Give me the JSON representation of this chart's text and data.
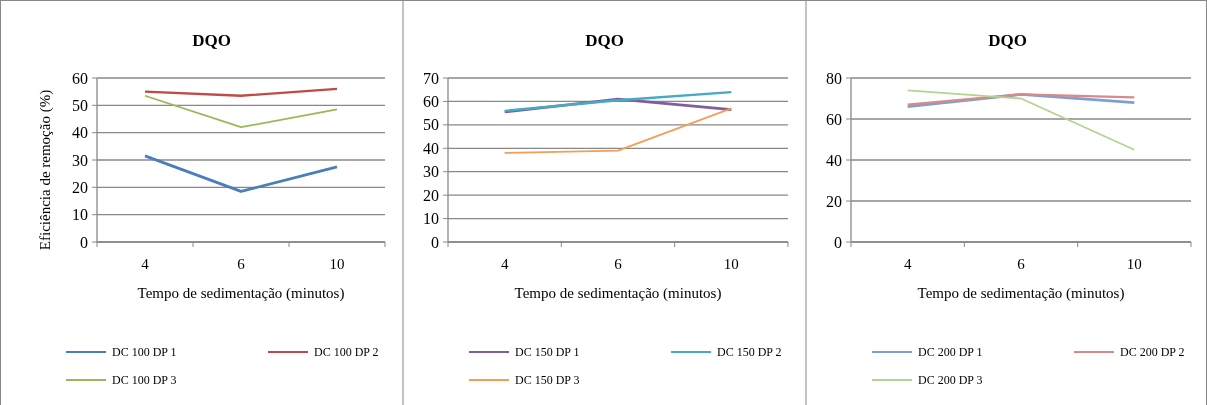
{
  "chart_data": [
    {
      "type": "line",
      "title": "DQO",
      "xlabel": "Tempo de sedimentação (minutos)",
      "ylabel": "Eficiência de remoção (%)",
      "categories": [
        "4",
        "6",
        "10"
      ],
      "ylim": [
        0,
        60
      ],
      "yticks": [
        0,
        10,
        20,
        30,
        40,
        50,
        60
      ],
      "grid": "y",
      "legend": "bottom",
      "series": [
        {
          "name": "DC 100 DP 1",
          "color": "#4a7ebb",
          "values": [
            31.5,
            18.5,
            27.5
          ]
        },
        {
          "name": "DC 100 DP 2",
          "color": "#be4b48",
          "values": [
            55,
            53.5,
            56
          ]
        },
        {
          "name": "DC 100 DP 3",
          "color": "#98b954",
          "values": [
            53.5,
            42,
            48.5
          ]
        }
      ]
    },
    {
      "type": "line",
      "title": "DQO",
      "xlabel": "Tempo de sedimentação (minutos)",
      "categories": [
        "4",
        "6",
        "10"
      ],
      "ylim": [
        0,
        70
      ],
      "yticks": [
        0,
        10,
        20,
        30,
        40,
        50,
        60,
        70
      ],
      "grid": "y",
      "legend": "bottom",
      "series": [
        {
          "name": "DC 150 DP 1",
          "color": "#7d5fa0",
          "values": [
            55.5,
            61,
            56.5
          ]
        },
        {
          "name": "DC 150 DP 2",
          "color": "#46aac5",
          "values": [
            56,
            60.5,
            64
          ]
        },
        {
          "name": "DC 150 DP 3",
          "color": "#f59d56",
          "values": [
            38,
            39,
            57
          ]
        }
      ]
    },
    {
      "type": "line",
      "title": "DQO",
      "xlabel": "Tempo de sedimentação (minutos)",
      "categories": [
        "4",
        "6",
        "10"
      ],
      "ylim": [
        0,
        80
      ],
      "yticks": [
        0,
        20,
        40,
        60,
        80
      ],
      "grid": "y",
      "legend": "bottom",
      "series": [
        {
          "name": "DC 200 DP 1",
          "color": "#7f9fd3",
          "values": [
            66,
            72,
            68
          ]
        },
        {
          "name": "DC 200 DP 2",
          "color": "#d88a88",
          "values": [
            67,
            72,
            70.5
          ]
        },
        {
          "name": "DC 200 DP 3",
          "color": "#b4d38e",
          "values": [
            74,
            70,
            45
          ]
        }
      ]
    }
  ]
}
